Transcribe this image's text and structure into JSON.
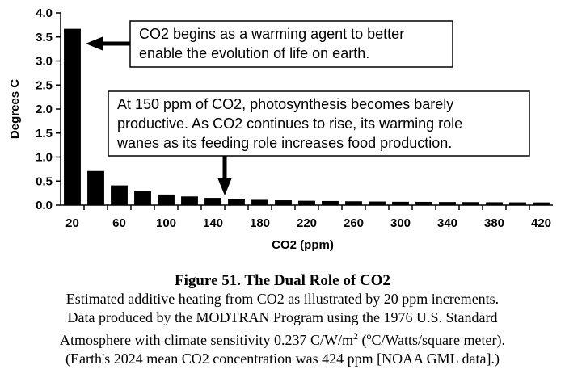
{
  "chart_data": {
    "type": "bar",
    "ylabel": "Degrees C",
    "xlabel": "CO2 (ppm)",
    "ylim": [
      0,
      4
    ],
    "y_ticks": [
      "0.0",
      "0.5",
      "1.0",
      "1.5",
      "2.0",
      "2.5",
      "3.0",
      "3.5",
      "4.0"
    ],
    "x_tick_labels": [
      "20",
      "60",
      "100",
      "140",
      "180",
      "220",
      "260",
      "300",
      "340",
      "380",
      "420"
    ],
    "categories": [
      "20",
      "40",
      "60",
      "80",
      "100",
      "120",
      "140",
      "160",
      "180",
      "200",
      "220",
      "240",
      "260",
      "280",
      "300",
      "320",
      "340",
      "360",
      "380",
      "400",
      "420"
    ],
    "values": [
      3.67,
      0.71,
      0.41,
      0.29,
      0.22,
      0.18,
      0.15,
      0.13,
      0.11,
      0.1,
      0.09,
      0.085,
      0.08,
      0.075,
      0.07,
      0.068,
      0.065,
      0.063,
      0.06,
      0.058,
      0.056
    ],
    "grid": false,
    "bar_color": "#000000",
    "annotations": [
      {
        "lines": [
          "CO2 begins as a warming agent to better",
          "enable the evolution of life on earth."
        ],
        "points_to": "20"
      },
      {
        "lines": [
          "At 150 ppm of CO2, photosynthesis becomes barely",
          "productive.  As CO2 continues to rise, its warming role",
          "wanes as its feeding role increases food production."
        ],
        "points_to": "150"
      }
    ]
  },
  "caption": {
    "title": "Figure 51.  The Dual Role of CO2",
    "line1": "Estimated additive heating from CO2 as illustrated by 20 ppm increments.",
    "line2": "Data produced by the MODTRAN Program using the 1976 U.S. Standard",
    "line3_start": "Atmosphere with climate sensitivity 0.237 C/W/m",
    "line3_sup1": "2",
    "line3_mid": " (",
    "line3_sup2": "o",
    "line3_end": "C/Watts/square meter).",
    "line4": "(Earth's 2024 mean CO2 concentration was 424 ppm [NOAA GML data].)"
  }
}
